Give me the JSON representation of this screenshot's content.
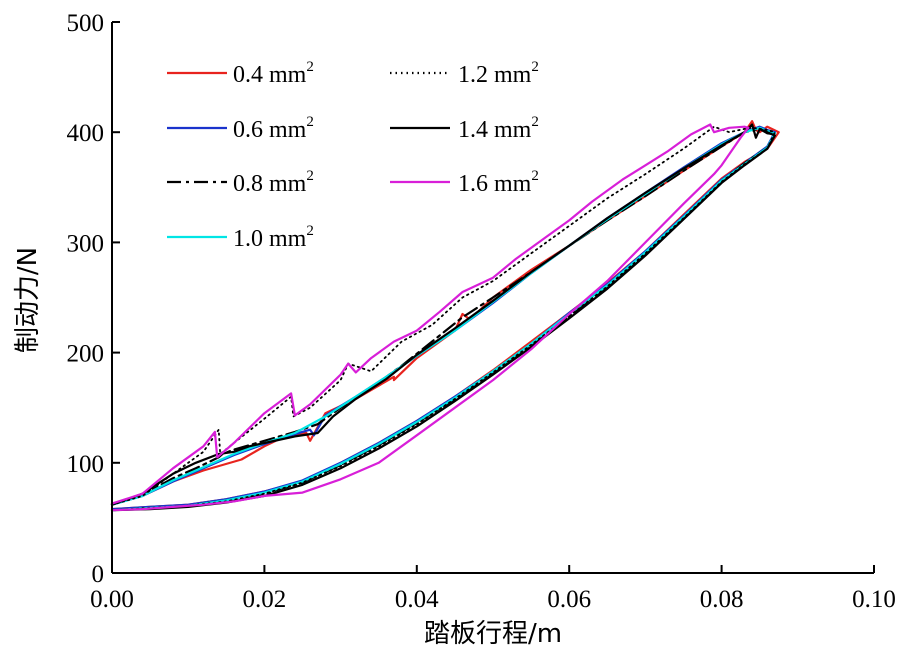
{
  "chart_data": {
    "type": "line",
    "title": "",
    "xlabel": "踏板行程/m",
    "ylabel": "制动力/N",
    "xlim": [
      0.0,
      0.1
    ],
    "ylim": [
      0,
      500
    ],
    "x_ticks": [
      0.0,
      0.02,
      0.04,
      0.06,
      0.08,
      0.1
    ],
    "x_tick_labels": [
      "0.00",
      "0.02",
      "0.04",
      "0.06",
      "0.08",
      "0.10"
    ],
    "y_ticks": [
      0,
      100,
      200,
      300,
      400,
      500
    ],
    "y_tick_labels": [
      "0",
      "100",
      "200",
      "300",
      "400",
      "500"
    ],
    "grid": false,
    "legend_position": "top-left",
    "legend_unit": "mm",
    "legend_unit_exp": "2",
    "series": [
      {
        "name": "0.4 mm",
        "color": "#e8231e",
        "dash": "solid",
        "x": [
          0.0,
          0.004,
          0.008,
          0.012,
          0.017,
          0.02,
          0.023,
          0.0255,
          0.026,
          0.028,
          0.032,
          0.037,
          0.037,
          0.04,
          0.045,
          0.046,
          0.047,
          0.05,
          0.055,
          0.06,
          0.065,
          0.07,
          0.075,
          0.08,
          0.083,
          0.084,
          0.0845,
          0.085,
          0.086,
          0.0875,
          0.086,
          0.083,
          0.08,
          0.075,
          0.07,
          0.065,
          0.06,
          0.055,
          0.05,
          0.045,
          0.04,
          0.035,
          0.03,
          0.025,
          0.02,
          0.015,
          0.01,
          0.005,
          0.0
        ],
        "y": [
          63,
          70,
          83,
          93,
          103,
          115,
          125,
          127,
          120,
          145,
          158,
          178,
          175,
          195,
          220,
          235,
          230,
          250,
          275,
          297,
          320,
          342,
          365,
          387,
          400,
          410,
          402,
          400,
          405,
          400,
          385,
          373,
          358,
          325,
          292,
          263,
          236,
          210,
          184,
          160,
          138,
          118,
          100,
          83,
          74,
          67,
          62,
          60,
          58
        ]
      },
      {
        "name": "0.6 mm",
        "color": "#1a33cc",
        "dash": "solid",
        "x": [
          0.0,
          0.004,
          0.008,
          0.012,
          0.016,
          0.02,
          0.024,
          0.026,
          0.0265,
          0.028,
          0.032,
          0.036,
          0.04,
          0.045,
          0.05,
          0.055,
          0.06,
          0.065,
          0.07,
          0.075,
          0.08,
          0.083,
          0.085,
          0.086,
          0.087,
          0.086,
          0.083,
          0.08,
          0.075,
          0.07,
          0.065,
          0.06,
          0.055,
          0.05,
          0.045,
          0.04,
          0.035,
          0.03,
          0.025,
          0.02,
          0.015,
          0.01,
          0.005,
          0.0
        ],
        "y": [
          62,
          70,
          83,
          95,
          107,
          117,
          126,
          130,
          125,
          143,
          160,
          178,
          197,
          220,
          245,
          272,
          297,
          322,
          345,
          368,
          390,
          400,
          405,
          402,
          400,
          387,
          372,
          357,
          324,
          292,
          262,
          236,
          208,
          183,
          160,
          138,
          118,
          100,
          84,
          74,
          67,
          62,
          60,
          58
        ]
      },
      {
        "name": "0.8 mm",
        "color": "#000000",
        "dash": "dashdot",
        "x": [
          0.0,
          0.004,
          0.008,
          0.011,
          0.014,
          0.0145,
          0.016,
          0.02,
          0.024,
          0.027,
          0.03,
          0.034,
          0.038,
          0.042,
          0.046,
          0.05,
          0.055,
          0.06,
          0.065,
          0.07,
          0.075,
          0.08,
          0.083,
          0.085,
          0.086,
          0.087,
          0.086,
          0.083,
          0.08,
          0.075,
          0.07,
          0.065,
          0.06,
          0.055,
          0.05,
          0.045,
          0.04,
          0.035,
          0.03,
          0.025,
          0.02,
          0.015,
          0.01,
          0.005,
          0.0
        ],
        "y": [
          62,
          71,
          86,
          95,
          105,
          108,
          112,
          120,
          128,
          135,
          150,
          168,
          188,
          210,
          232,
          250,
          273,
          297,
          320,
          342,
          365,
          387,
          400,
          403,
          399,
          398,
          386,
          372,
          356,
          322,
          290,
          260,
          233,
          207,
          182,
          158,
          136,
          116,
          98,
          82,
          72,
          66,
          61,
          59,
          57
        ]
      },
      {
        "name": "1.0 mm",
        "color": "#00e5e5",
        "dash": "solid",
        "x": [
          0.0,
          0.004,
          0.008,
          0.012,
          0.016,
          0.02,
          0.024,
          0.028,
          0.032,
          0.036,
          0.04,
          0.045,
          0.05,
          0.055,
          0.06,
          0.065,
          0.07,
          0.075,
          0.08,
          0.083,
          0.085,
          0.086,
          0.087,
          0.086,
          0.083,
          0.08,
          0.075,
          0.07,
          0.065,
          0.06,
          0.055,
          0.05,
          0.045,
          0.04,
          0.035,
          0.03,
          0.025,
          0.02,
          0.015,
          0.01,
          0.005,
          0.0
        ],
        "y": [
          62,
          70,
          84,
          96,
          108,
          118,
          127,
          142,
          160,
          178,
          197,
          220,
          246,
          272,
          297,
          321,
          344,
          367,
          389,
          400,
          404,
          401,
          399,
          386,
          371,
          356,
          323,
          291,
          261,
          235,
          208,
          183,
          159,
          137,
          117,
          99,
          83,
          73,
          66,
          61,
          59,
          57
        ]
      },
      {
        "name": "1.2 mm",
        "color": "#000000",
        "dash": "dotted",
        "x": [
          0.0,
          0.004,
          0.008,
          0.012,
          0.014,
          0.0142,
          0.016,
          0.02,
          0.0235,
          0.0238,
          0.026,
          0.03,
          0.031,
          0.034,
          0.038,
          0.042,
          0.046,
          0.05,
          0.055,
          0.06,
          0.065,
          0.07,
          0.075,
          0.079,
          0.081,
          0.083,
          0.084,
          0.085,
          0.086,
          0.087,
          0.086,
          0.083,
          0.08,
          0.075,
          0.07,
          0.065,
          0.06,
          0.055,
          0.05,
          0.045,
          0.04,
          0.035,
          0.03,
          0.025,
          0.02,
          0.015,
          0.01,
          0.005,
          0.0
        ],
        "y": [
          62,
          70,
          90,
          110,
          130,
          108,
          118,
          140,
          160,
          142,
          150,
          175,
          190,
          183,
          210,
          225,
          250,
          265,
          290,
          315,
          340,
          362,
          385,
          405,
          400,
          403,
          404,
          403,
          402,
          400,
          385,
          371,
          355,
          322,
          290,
          260,
          233,
          207,
          182,
          158,
          135,
          115,
          97,
          82,
          72,
          65,
          61,
          59,
          57
        ]
      },
      {
        "name": "1.4 mm",
        "color": "#000000",
        "dash": "solid",
        "x": [
          0.0,
          0.004,
          0.008,
          0.011,
          0.014,
          0.016,
          0.018,
          0.02,
          0.024,
          0.027,
          0.029,
          0.032,
          0.036,
          0.04,
          0.045,
          0.05,
          0.055,
          0.06,
          0.065,
          0.07,
          0.075,
          0.08,
          0.083,
          0.084,
          0.0845,
          0.085,
          0.086,
          0.087,
          0.086,
          0.083,
          0.08,
          0.075,
          0.07,
          0.065,
          0.06,
          0.055,
          0.05,
          0.045,
          0.04,
          0.035,
          0.03,
          0.025,
          0.02,
          0.015,
          0.01,
          0.005,
          0.0
        ],
        "y": [
          62,
          72,
          90,
          100,
          108,
          110,
          115,
          118,
          124,
          127,
          142,
          158,
          176,
          198,
          222,
          247,
          273,
          297,
          322,
          345,
          367,
          388,
          400,
          407,
          395,
          403,
          400,
          397,
          385,
          370,
          354,
          321,
          288,
          258,
          231,
          205,
          180,
          156,
          133,
          113,
          95,
          80,
          70,
          64,
          60,
          58,
          57
        ]
      },
      {
        "name": "1.6 mm",
        "color": "#d81fd8",
        "dash": "solid",
        "x": [
          0.0,
          0.004,
          0.008,
          0.012,
          0.0135,
          0.0138,
          0.016,
          0.02,
          0.0235,
          0.024,
          0.026,
          0.03,
          0.031,
          0.032,
          0.034,
          0.037,
          0.04,
          0.043,
          0.046,
          0.05,
          0.053,
          0.057,
          0.06,
          0.063,
          0.067,
          0.07,
          0.073,
          0.076,
          0.0785,
          0.079,
          0.081,
          0.083,
          0.0835,
          0.0825,
          0.0815,
          0.08,
          0.079,
          0.075,
          0.07,
          0.065,
          0.06,
          0.055,
          0.05,
          0.045,
          0.04,
          0.035,
          0.03,
          0.025,
          0.02,
          0.016,
          0.012,
          0.008,
          0.004,
          0.0
        ],
        "y": [
          63,
          72,
          95,
          115,
          128,
          105,
          118,
          145,
          163,
          143,
          153,
          180,
          190,
          182,
          195,
          210,
          220,
          237,
          255,
          268,
          285,
          305,
          320,
          337,
          357,
          370,
          383,
          398,
          407,
          400,
          404,
          405,
          404,
          395,
          385,
          370,
          362,
          335,
          300,
          265,
          235,
          203,
          175,
          150,
          125,
          100,
          85,
          73,
          70,
          65,
          62,
          60,
          58,
          57
        ]
      }
    ]
  }
}
